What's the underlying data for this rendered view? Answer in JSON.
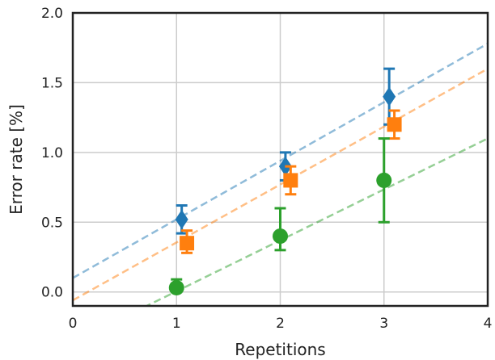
{
  "chart_data": {
    "type": "scatter",
    "title": "",
    "xlabel": "Repetitions",
    "ylabel": "Error rate [%]",
    "xlim": [
      0,
      4
    ],
    "ylim": [
      -0.1,
      2.0
    ],
    "xticks": [
      0,
      1,
      2,
      3,
      4
    ],
    "xtick_labels": [
      "0",
      "1",
      "2",
      "3",
      "4"
    ],
    "yticks": [
      0.0,
      0.5,
      1.0,
      1.5,
      2.0
    ],
    "ytick_labels": [
      "0.0",
      "0.5",
      "1.0",
      "1.5",
      "2.0"
    ],
    "grid": true,
    "legend": "none",
    "series": [
      {
        "marker": "diamond",
        "color": "#1f77b4",
        "x": [
          1.05,
          2.05,
          3.05
        ],
        "y": [
          0.52,
          0.9,
          1.4
        ],
        "yerr_low": [
          0.42,
          0.8,
          1.2
        ],
        "yerr_high": [
          0.62,
          1.0,
          1.6
        ],
        "fit": {
          "intercept": 0.1,
          "slope": 0.42
        }
      },
      {
        "marker": "square",
        "color": "#ff7f0e",
        "x": [
          1.1,
          2.1,
          3.1
        ],
        "y": [
          0.35,
          0.8,
          1.2
        ],
        "yerr_low": [
          0.28,
          0.7,
          1.1
        ],
        "yerr_high": [
          0.44,
          0.9,
          1.3
        ],
        "fit": {
          "intercept": -0.06,
          "slope": 0.415
        }
      },
      {
        "marker": "circle",
        "color": "#2ca02c",
        "x": [
          1.0,
          2.0,
          3.0
        ],
        "y": [
          0.03,
          0.4,
          0.8
        ],
        "yerr_low": [
          0.0,
          0.3,
          0.5
        ],
        "yerr_high": [
          0.09,
          0.6,
          1.1
        ],
        "fit": {
          "intercept": -0.36,
          "slope": 0.365
        }
      }
    ]
  }
}
